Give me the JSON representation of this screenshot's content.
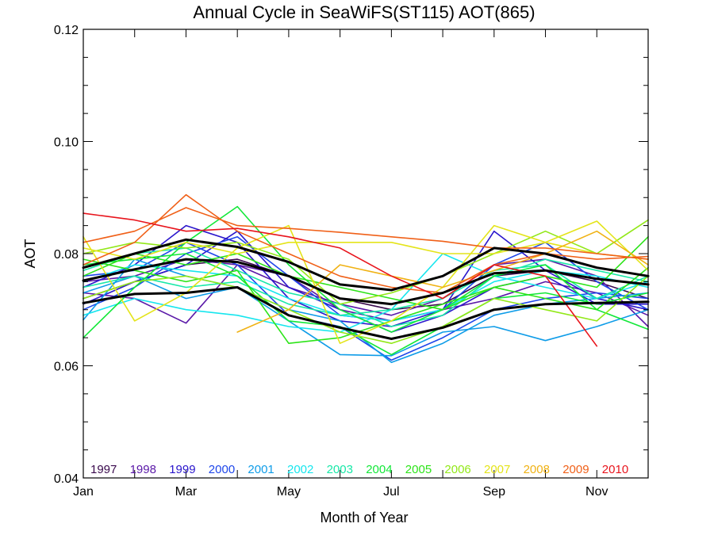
{
  "chart_data": {
    "type": "line",
    "title": "Annual Cycle in SeaWiFS(ST115) AOT(865)",
    "xlabel": "Month of Year",
    "ylabel": "AOT",
    "xlim": [
      1,
      12
    ],
    "ylim": [
      0.04,
      0.12
    ],
    "y_ticks": [
      {
        "value": 0.04,
        "label": "0.04"
      },
      {
        "value": 0.06,
        "label": "0.06"
      },
      {
        "value": 0.08,
        "label": "0.08"
      },
      {
        "value": 0.1,
        "label": "0.10"
      },
      {
        "value": 0.12,
        "label": "0.12"
      }
    ],
    "x_ticks": [
      {
        "value": 1,
        "label": "Jan"
      },
      {
        "value": 3,
        "label": "Mar"
      },
      {
        "value": 5,
        "label": "May"
      },
      {
        "value": 7,
        "label": "Jul"
      },
      {
        "value": 9,
        "label": "Sep"
      },
      {
        "value": 11,
        "label": "Nov"
      }
    ],
    "legend_position": "bottom-inside",
    "legend": [
      {
        "label": "1997",
        "color": "#3a0a4d"
      },
      {
        "label": "1998",
        "color": "#5a18a8"
      },
      {
        "label": "1999",
        "color": "#2a16cc"
      },
      {
        "label": "2000",
        "color": "#1e46ea"
      },
      {
        "label": "2001",
        "color": "#0e9ce8"
      },
      {
        "label": "2002",
        "color": "#16e6ee"
      },
      {
        "label": "2003",
        "color": "#18e8a8"
      },
      {
        "label": "2004",
        "color": "#12e838"
      },
      {
        "label": "2005",
        "color": "#2ce418"
      },
      {
        "label": "2006",
        "color": "#92e818"
      },
      {
        "label": "2007",
        "color": "#e4e41a"
      },
      {
        "label": "2008",
        "color": "#f0b214"
      },
      {
        "label": "2009",
        "color": "#f06018"
      },
      {
        "label": "2010",
        "color": "#e8141c"
      }
    ],
    "x": [
      1,
      2,
      3,
      4,
      5,
      6,
      7,
      8,
      9,
      10,
      11,
      12
    ],
    "series": [
      {
        "color": "#3a0a4d",
        "values": [
          0.072,
          0.075,
          0.078,
          0.079,
          0.076,
          0.072,
          0.07,
          0.071,
          0.076,
          0.077,
          0.075,
          0.072
        ]
      },
      {
        "color": "#5a18a8",
        "values": [
          0.073,
          0.072,
          0.0676,
          0.078,
          0.076,
          0.07,
          0.068,
          0.07,
          0.072,
          0.075,
          0.073,
          0.069
        ]
      },
      {
        "color": "#5a18a8",
        "values": [
          0.075,
          0.076,
          0.079,
          0.078,
          0.074,
          0.071,
          0.069,
          0.072,
          0.078,
          0.079,
          0.076,
          0.067
        ]
      },
      {
        "color": "#2a16cc",
        "values": [
          0.074,
          0.078,
          0.085,
          0.082,
          0.072,
          0.068,
          0.067,
          0.07,
          0.084,
          0.077,
          0.072,
          0.07
        ]
      },
      {
        "color": "#2a16cc",
        "values": [
          0.071,
          0.075,
          0.078,
          0.084,
          0.074,
          0.07,
          0.066,
          0.069,
          0.074,
          0.076,
          0.071,
          0.071
        ]
      },
      {
        "color": "#1e46ea",
        "values": [
          0.076,
          0.077,
          0.082,
          0.078,
          0.069,
          0.067,
          0.061,
          0.065,
          0.07,
          0.072,
          0.073,
          0.072
        ]
      },
      {
        "color": "#1e46ea",
        "values": [
          0.07,
          0.074,
          0.08,
          0.083,
          0.076,
          0.069,
          0.068,
          0.07,
          0.078,
          0.082,
          0.075,
          0.07
        ]
      },
      {
        "color": "#0e9ce8",
        "values": [
          0.0682,
          0.079,
          0.076,
          0.074,
          0.068,
          0.062,
          0.0618,
          0.066,
          0.067,
          0.0645,
          0.067,
          0.07
        ]
      },
      {
        "color": "#0e9ce8",
        "values": [
          0.073,
          0.076,
          0.072,
          0.074,
          0.07,
          0.068,
          0.0606,
          0.064,
          0.069,
          0.071,
          0.072,
          0.073
        ]
      },
      {
        "color": "#16e6ee",
        "values": [
          0.069,
          0.072,
          0.07,
          0.069,
          0.067,
          0.066,
          0.07,
          0.08,
          0.076,
          0.074,
          0.072,
          0.075
        ]
      },
      {
        "color": "#16e6ee",
        "values": [
          0.075,
          0.078,
          0.077,
          0.076,
          0.072,
          0.069,
          0.068,
          0.07,
          0.075,
          0.077,
          0.076,
          0.074
        ]
      },
      {
        "color": "#18e8a8",
        "values": [
          0.077,
          0.08,
          0.081,
          0.077,
          0.073,
          0.071,
          0.067,
          0.069,
          0.076,
          0.079,
          0.077,
          0.075
        ]
      },
      {
        "color": "#18e8a8",
        "values": [
          0.074,
          0.076,
          0.074,
          0.075,
          0.071,
          0.069,
          0.07,
          0.072,
          0.077,
          0.078,
          0.072,
          0.076
        ]
      },
      {
        "color": "#12e838",
        "values": [
          0.065,
          0.074,
          0.082,
          0.0884,
          0.078,
          0.07,
          0.066,
          0.07,
          0.076,
          0.078,
          0.07,
          0.0665
        ]
      },
      {
        "color": "#12e838",
        "values": [
          0.078,
          0.079,
          0.08,
          0.076,
          0.068,
          0.067,
          0.062,
          0.067,
          0.072,
          0.073,
          0.071,
          0.073
        ]
      },
      {
        "color": "#2ce418",
        "values": [
          0.076,
          0.08,
          0.078,
          0.08,
          0.076,
          0.074,
          0.072,
          0.07,
          0.074,
          0.076,
          0.074,
          0.083
        ]
      },
      {
        "color": "#2ce418",
        "values": [
          0.079,
          0.077,
          0.075,
          0.077,
          0.064,
          0.065,
          0.068,
          0.071,
          0.074,
          0.072,
          0.07,
          0.0775
        ]
      },
      {
        "color": "#92e818",
        "values": [
          0.08,
          0.082,
          0.081,
          0.082,
          0.079,
          0.071,
          0.073,
          0.076,
          0.08,
          0.084,
          0.08,
          0.086
        ]
      },
      {
        "color": "#92e818",
        "values": [
          0.072,
          0.075,
          0.076,
          0.074,
          0.07,
          0.066,
          0.064,
          0.067,
          0.072,
          0.07,
          0.068,
          0.076
        ]
      },
      {
        "color": "#e4e41a",
        "values": [
          0.083,
          0.068,
          0.073,
          0.081,
          0.085,
          0.064,
          0.068,
          0.074,
          0.085,
          0.082,
          0.0858,
          0.077
        ]
      },
      {
        "color": "#e4e41a",
        "values": [
          0.081,
          0.079,
          0.082,
          0.08,
          0.082,
          0.082,
          0.082,
          0.08,
          0.08,
          0.082,
          0.08,
          0.079
        ]
      },
      {
        "color": "#f0b214",
        "values": [
          null,
          null,
          null,
          0.066,
          0.07,
          0.078,
          0.076,
          0.074,
          0.077,
          0.08,
          0.084,
          0.078
        ]
      },
      {
        "color": "#f06018",
        "values": [
          0.078,
          0.082,
          0.0905,
          0.084,
          0.08,
          0.076,
          0.074,
          0.073,
          0.078,
          0.08,
          0.079,
          0.0795
        ]
      },
      {
        "color": "#f06018",
        "values": [
          0.082,
          0.084,
          0.0882,
          0.085,
          0.0845,
          0.0838,
          0.083,
          0.0822,
          0.081,
          0.081,
          0.08,
          0.079
        ]
      },
      {
        "color": "#e8141c",
        "values": [
          0.0872,
          0.086,
          0.084,
          0.0845,
          0.083,
          0.081,
          0.076,
          0.072,
          0.078,
          0.076,
          0.0635,
          null
        ]
      },
      {
        "color": "#000000",
        "emphasis": true,
        "values": [
          0.0775,
          0.08,
          0.0825,
          0.0812,
          0.0785,
          0.0745,
          0.0735,
          0.076,
          0.081,
          0.08,
          0.0775,
          0.076
        ]
      },
      {
        "color": "#000000",
        "emphasis": true,
        "values": [
          0.0752,
          0.0772,
          0.079,
          0.0785,
          0.076,
          0.072,
          0.071,
          0.073,
          0.0765,
          0.077,
          0.0755,
          0.0745
        ]
      },
      {
        "color": "#000000",
        "emphasis": true,
        "values": [
          0.0712,
          0.0728,
          0.073,
          0.074,
          0.069,
          0.0668,
          0.0648,
          0.0668,
          0.07,
          0.071,
          0.0712,
          0.0714
        ]
      }
    ]
  }
}
